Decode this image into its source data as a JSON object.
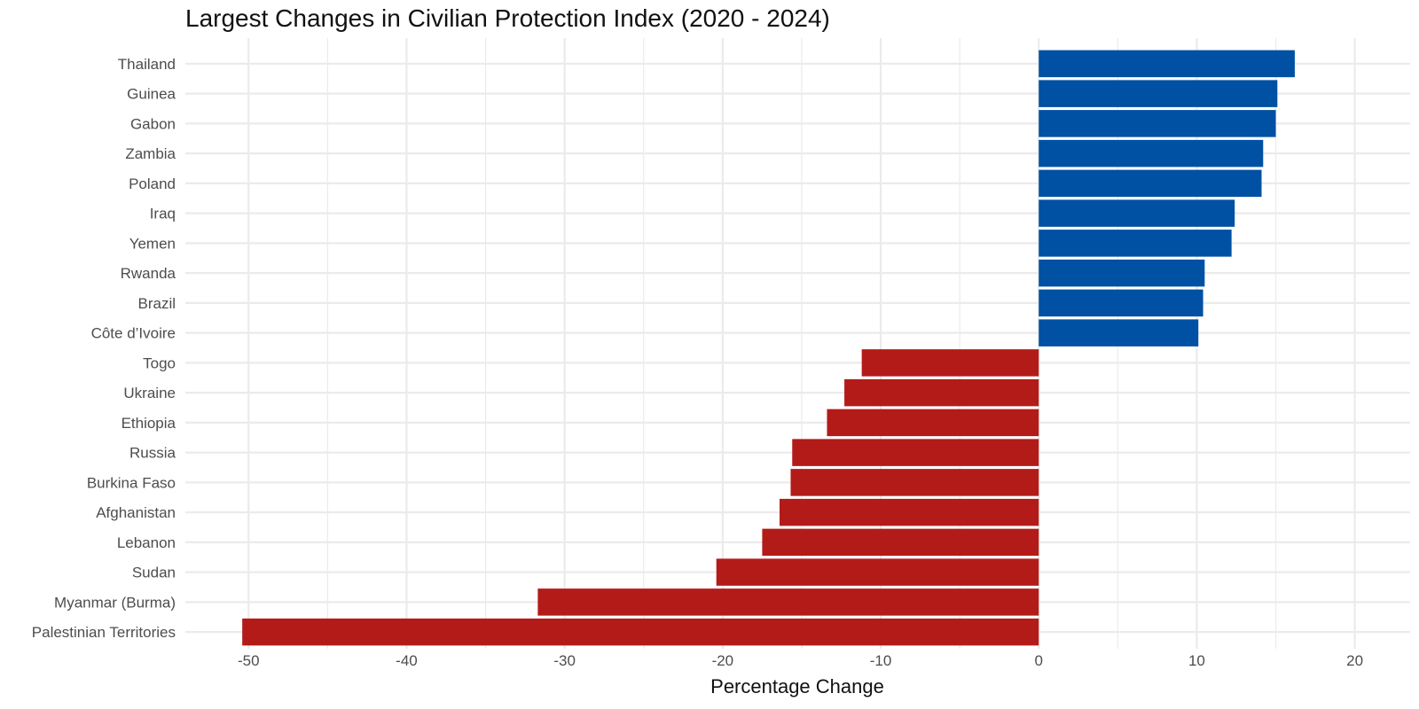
{
  "chart_data": {
    "type": "bar",
    "orientation": "horizontal",
    "title": "Largest Changes in Civilian Protection Index (2020 - 2024)",
    "xlabel": "Percentage Change",
    "ylabel": "",
    "xlim": [
      -54,
      23.5
    ],
    "xticks": [
      -50,
      -40,
      -30,
      -20,
      -10,
      0,
      10,
      20
    ],
    "grid": true,
    "colors": {
      "positive": "#0050a3",
      "negative": "#b31b19",
      "grid": "#ebebeb"
    },
    "categories": [
      "Thailand",
      "Guinea",
      "Gabon",
      "Zambia",
      "Poland",
      "Iraq",
      "Yemen",
      "Rwanda",
      "Brazil",
      "Côte d’Ivoire",
      "Togo",
      "Ukraine",
      "Ethiopia",
      "Russia",
      "Burkina Faso",
      "Afghanistan",
      "Lebanon",
      "Sudan",
      "Myanmar (Burma)",
      "Palestinian Territories"
    ],
    "values": [
      16.2,
      15.1,
      15.0,
      14.2,
      14.1,
      12.4,
      12.2,
      10.5,
      10.4,
      10.1,
      -11.2,
      -12.3,
      -13.4,
      -15.6,
      -15.7,
      -16.4,
      -17.5,
      -20.4,
      -31.7,
      -50.4
    ]
  }
}
